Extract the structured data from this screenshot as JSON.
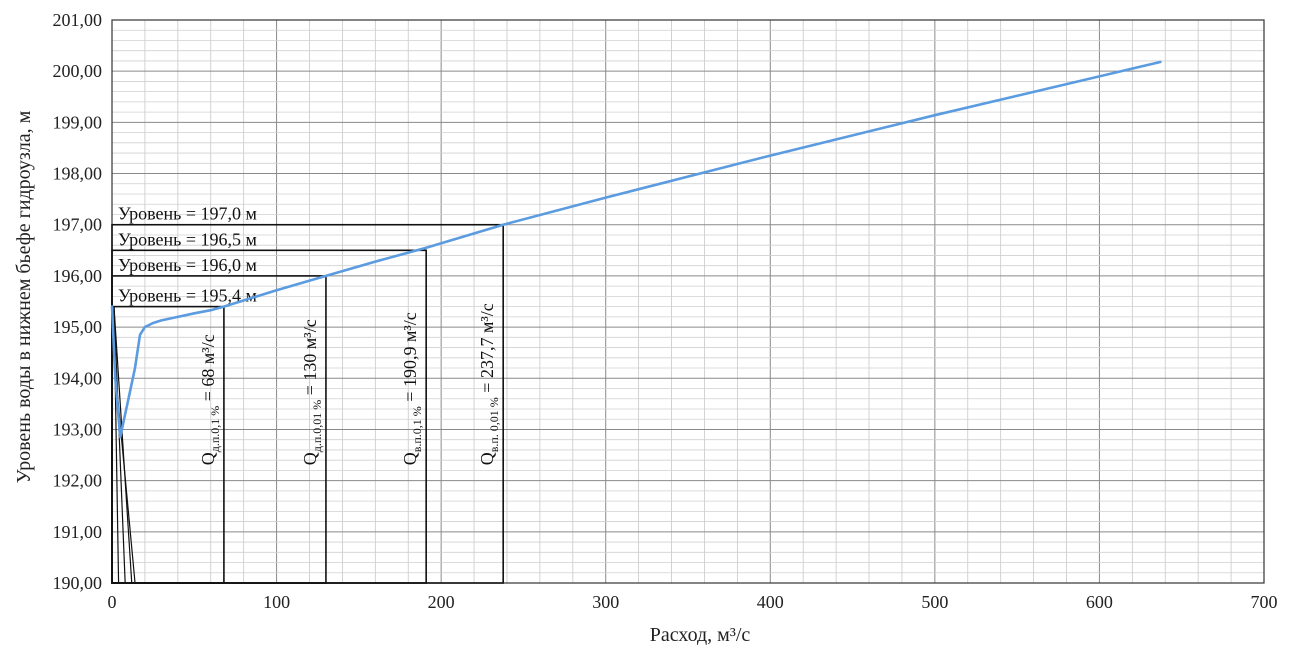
{
  "chart_data": {
    "type": "line",
    "title": "",
    "xlabel": "Расход, м³/с",
    "ylabel": "Уровень воды в нижнем бьефе гидроузла, м",
    "xlim": [
      0,
      700
    ],
    "ylim": [
      190,
      201
    ],
    "x_ticks": [
      0,
      100,
      200,
      300,
      400,
      500,
      600,
      700
    ],
    "y_ticks": [
      190,
      191,
      192,
      193,
      194,
      195,
      196,
      197,
      198,
      199,
      200,
      201
    ],
    "y_tick_labels": [
      "190,00",
      "191,00",
      "192,00",
      "193,00",
      "194,00",
      "195,00",
      "196,00",
      "197,00",
      "198,00",
      "199,00",
      "200,00",
      "201,00"
    ],
    "x_tick_labels": [
      "0",
      "100",
      "200",
      "300",
      "400",
      "500",
      "600",
      "700"
    ],
    "grid": true,
    "line_color": "#5b9be0",
    "series": [
      {
        "x": [
          0,
          2,
          5,
          10,
          14,
          17,
          20,
          25,
          30,
          40,
          50,
          60,
          68,
          100,
          130,
          160,
          190.9,
          237.7,
          300,
          400,
          500,
          637
        ],
        "y": [
          195.4,
          194.0,
          192.85,
          193.6,
          194.2,
          194.85,
          195.0,
          195.08,
          195.13,
          195.2,
          195.27,
          195.33,
          195.4,
          195.72,
          196.0,
          196.28,
          196.55,
          197.0,
          197.53,
          198.35,
          199.14,
          200.18
        ]
      }
    ],
    "level_boxes": [
      {
        "label": "Уровень = 197,0 м",
        "level": 197.0,
        "q": 237.7
      },
      {
        "label": "Уровень = 196,5 м",
        "level": 196.5,
        "q": 190.9
      },
      {
        "label": "Уровень = 196,0 м",
        "level": 196.0,
        "q": 130
      },
      {
        "label": "Уровень = 195,4 м",
        "level": 195.4,
        "q": 68
      }
    ],
    "q_annotations": [
      {
        "prefix": "Q",
        "sub": "д.п.0,1 %",
        "value": " = 68 м³/с",
        "q": 68
      },
      {
        "prefix": "Q",
        "sub": "д.п.0,01 %",
        "value": " = 130 м³/с",
        "q": 130
      },
      {
        "prefix": "Q",
        "sub": "в.п.0,1 %",
        "value": " = 190,9 м³/с",
        "q": 190.9
      },
      {
        "prefix": "Q",
        "sub": "в.п. 0,01 %",
        "value": " = 237,7 м³/с",
        "q": 237.7
      }
    ]
  }
}
